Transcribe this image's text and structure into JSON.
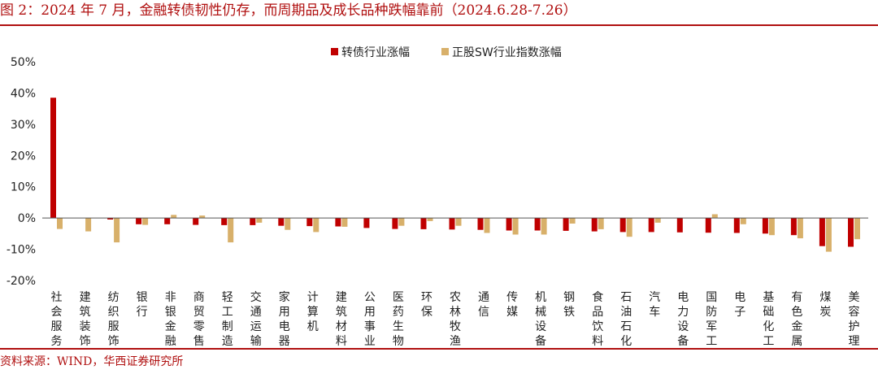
{
  "title": "图 2：2024 年 7 月，金融转债韧性仍存，而周期品及成长品种跌幅靠前（2024.6.28-7.26）",
  "source": "资料来源：WIND，华西证券研究所",
  "colors": {
    "accent": "#b01010",
    "series1": "#c00000",
    "series2": "#d8b06a"
  },
  "chart_data": {
    "type": "bar",
    "ylim": [
      -20,
      50
    ],
    "yticks": [
      50,
      40,
      30,
      20,
      10,
      0,
      -10,
      -20
    ],
    "ytick_labels": [
      "50%",
      "40%",
      "30%",
      "20%",
      "10%",
      "0%",
      "-10%",
      "-20%"
    ],
    "legend_position": "top-center",
    "categories": [
      "社会服务",
      "建筑装饰",
      "纺织服饰",
      "银行",
      "非银金融",
      "商贸零售",
      "轻工制造",
      "交通运输",
      "家用电器",
      "计算机",
      "建筑材料",
      "公用事业",
      "医药生物",
      "环保",
      "农林牧渔",
      "通信",
      "传媒",
      "机械设备",
      "钢铁",
      "食品饮料",
      "石油石化",
      "汽车",
      "电力设备",
      "国防军工",
      "电子",
      "基础化工",
      "有色金属",
      "煤炭",
      "美容护理"
    ],
    "series": [
      {
        "name": "转债行业涨幅",
        "values": [
          38.5,
          0,
          -0.5,
          -2.0,
          -2.0,
          -2.2,
          -2.3,
          -2.3,
          -2.5,
          -2.6,
          -2.7,
          -3.2,
          -3.5,
          -3.6,
          -3.7,
          -3.8,
          -4.0,
          -4.0,
          -4.1,
          -4.3,
          -4.5,
          -4.5,
          -4.6,
          -4.7,
          -4.8,
          -5.0,
          -5.5,
          -9.0,
          -9.2
        ]
      },
      {
        "name": "正股SW行业指数涨幅",
        "values": [
          -3.5,
          -4.3,
          -7.8,
          -2.2,
          1.0,
          0.8,
          -7.8,
          -1.5,
          -3.8,
          -4.5,
          -2.8,
          0,
          -2.5,
          -1.0,
          -2.5,
          -4.8,
          -5.3,
          -5.3,
          -1.8,
          -3.6,
          -6.0,
          -1.5,
          0,
          1.2,
          -2.0,
          -5.5,
          -6.5,
          -10.8,
          -6.8
        ]
      }
    ]
  }
}
